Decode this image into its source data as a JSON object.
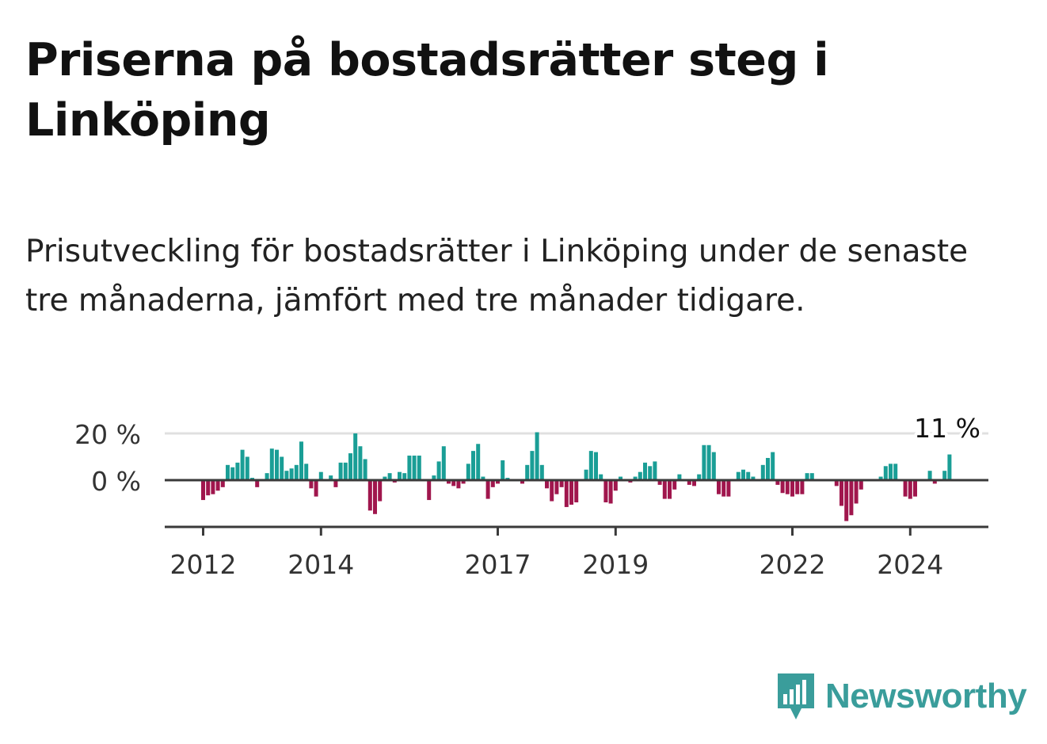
{
  "title": "Priserna på bostadsrätter steg i Linköping",
  "subtitle": "Prisutveckling för bostadsrätter i Linköping under de senaste tre månaderna, jämfört med tre månader tidigare.",
  "brand": {
    "name": "Newsworthy",
    "color": "#3a9d9b"
  },
  "colors": {
    "positive": "#1a9e96",
    "negative": "#a0164d",
    "grid": "#e0e0e0",
    "axis": "#3a3a3a",
    "text": "#333333"
  },
  "chart_data": {
    "type": "bar",
    "x_start": "2012-01",
    "frequency": "monthly",
    "ylim": [
      -20,
      20
    ],
    "yticks": [
      {
        "value": 20,
        "label": "20 %"
      },
      {
        "value": 0,
        "label": "0 %"
      }
    ],
    "xticks": [
      {
        "value": "2012-01",
        "label": "2012"
      },
      {
        "value": "2014-01",
        "label": "2014"
      },
      {
        "value": "2017-01",
        "label": "2017"
      },
      {
        "value": "2019-01",
        "label": "2019"
      },
      {
        "value": "2022-01",
        "label": "2022"
      },
      {
        "value": "2024-01",
        "label": "2024"
      }
    ],
    "annotation": {
      "label": "11 %",
      "value": 11
    },
    "values": [
      -8.5,
      -6.5,
      -6.0,
      -4.5,
      -3.0,
      6.5,
      5.5,
      7.5,
      13.0,
      10.0,
      1.0,
      -3.0,
      -0.5,
      3.0,
      13.5,
      13.0,
      10.0,
      4.0,
      5.0,
      6.5,
      16.5,
      7.0,
      -3.5,
      -7.0,
      3.5,
      -0.5,
      2.0,
      -3.0,
      7.5,
      7.5,
      11.5,
      20.0,
      14.5,
      9.0,
      -13.0,
      -14.5,
      -9.0,
      1.5,
      3.0,
      -1.0,
      3.5,
      3.0,
      10.5,
      10.5,
      10.5,
      0.0,
      -8.5,
      2.0,
      8.0,
      14.5,
      -1.5,
      -2.5,
      -3.5,
      -1.5,
      7.0,
      12.5,
      15.5,
      1.5,
      -8.0,
      -3.0,
      -1.5,
      8.5,
      1.0,
      -0.5,
      -0.5,
      -1.5,
      6.5,
      12.5,
      20.5,
      6.5,
      -3.5,
      -9.0,
      -6.0,
      -3.0,
      -11.5,
      -10.5,
      -9.5,
      0.0,
      4.5,
      12.5,
      12.0,
      2.5,
      -9.5,
      -10.0,
      -4.5,
      1.5,
      0.0,
      -1.0,
      1.5,
      3.5,
      7.5,
      6.0,
      8.0,
      -2.0,
      -8.0,
      -8.0,
      -4.0,
      2.5,
      0.0,
      -2.0,
      -2.5,
      2.5,
      15.0,
      15.0,
      12.0,
      -6.0,
      -7.0,
      -7.0,
      0.0,
      3.5,
      4.5,
      3.5,
      1.5,
      0.0,
      6.5,
      9.5,
      12.0,
      -2.0,
      -5.5,
      -6.0,
      -7.0,
      -6.0,
      -6.0,
      3.0,
      3.0,
      0.0,
      0.0,
      -0.5,
      0.0,
      -2.5,
      -11.0,
      -17.5,
      -15.0,
      -10.0,
      -4.0,
      0.5,
      0.5,
      0.0,
      1.5,
      6.0,
      7.0,
      7.0,
      0.0,
      -7.0,
      -8.0,
      -7.0,
      0.5,
      0.5,
      4.0,
      -1.5,
      0.5,
      4.0,
      11.0
    ]
  }
}
